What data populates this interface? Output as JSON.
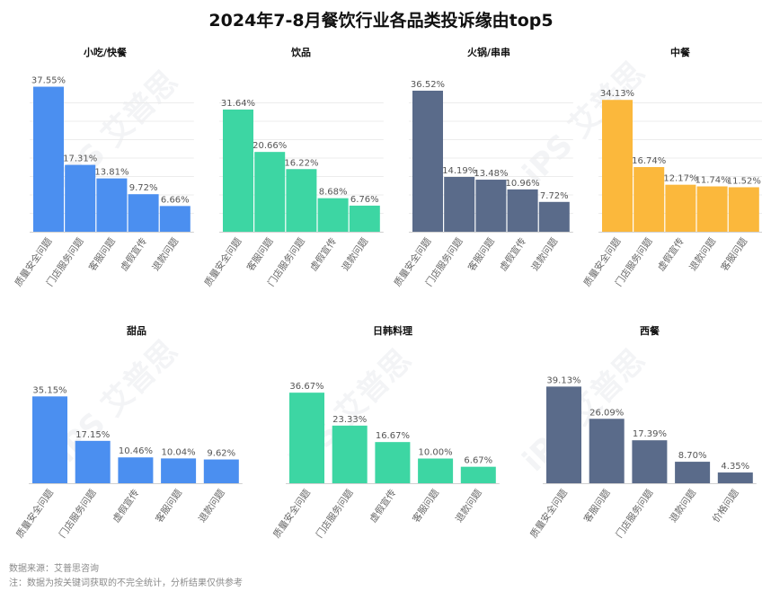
{
  "title": "2024年7-8月餐饮行业各品类投诉缘由top5",
  "footer": {
    "source": "数据来源：艾普思咨询",
    "note": "注：数据为按关键词获取的不完全统计，分析结果仅供参考"
  },
  "watermark": "iPS 艾普思",
  "colors": {
    "blue": "#4b8ff0",
    "green": "#3dd6a3",
    "slate": "#5a6b8a",
    "orange": "#fbb83c"
  },
  "chart_data": [
    {
      "type": "bar",
      "title": "小吃/快餐",
      "color": "blue",
      "categories": [
        "质量安全问题",
        "门店服务问题",
        "客服问题",
        "虚假宣传",
        "退款问题"
      ],
      "values": [
        37.55,
        17.31,
        13.81,
        9.72,
        6.66
      ],
      "labels": [
        "37.55%",
        "17.31%",
        "13.81%",
        "9.72%",
        "6.66%"
      ]
    },
    {
      "type": "bar",
      "title": "饮品",
      "color": "green",
      "categories": [
        "质量安全问题",
        "客服问题",
        "门店服务问题",
        "虚假宣传",
        "退款问题"
      ],
      "values": [
        31.64,
        20.66,
        16.22,
        8.68,
        6.76
      ],
      "labels": [
        "31.64%",
        "20.66%",
        "16.22%",
        "8.68%",
        "6.76%"
      ]
    },
    {
      "type": "bar",
      "title": "火锅/串串",
      "color": "slate",
      "categories": [
        "质量安全问题",
        "门店服务问题",
        "客服问题",
        "虚假宣传",
        "退款问题"
      ],
      "values": [
        36.52,
        14.19,
        13.48,
        10.96,
        7.72
      ],
      "labels": [
        "36.52%",
        "14.19%",
        "13.48%",
        "10.96%",
        "7.72%"
      ]
    },
    {
      "type": "bar",
      "title": "中餐",
      "color": "orange",
      "categories": [
        "质量安全问题",
        "门店服务问题",
        "虚假宣传",
        "退款问题",
        "客服问题"
      ],
      "values": [
        34.13,
        16.74,
        12.17,
        11.74,
        11.52
      ],
      "labels": [
        "34.13%",
        "16.74%",
        "12.17%",
        "11.74%",
        "11.52%"
      ]
    },
    {
      "type": "bar",
      "title": "甜品",
      "color": "blue",
      "categories": [
        "质量安全问题",
        "门店服务问题",
        "虚假宣传",
        "客服问题",
        "退款问题"
      ],
      "values": [
        35.15,
        17.15,
        10.46,
        10.04,
        9.62
      ],
      "labels": [
        "35.15%",
        "17.15%",
        "10.46%",
        "10.04%",
        "9.62%"
      ]
    },
    {
      "type": "bar",
      "title": "日韩料理",
      "color": "green",
      "categories": [
        "质量安全问题",
        "门店服务问题",
        "虚假宣传",
        "客服问题",
        "退款问题"
      ],
      "values": [
        36.67,
        23.33,
        16.67,
        10.0,
        6.67
      ],
      "labels": [
        "36.67%",
        "23.33%",
        "16.67%",
        "10.00%",
        "6.67%"
      ]
    },
    {
      "type": "bar",
      "title": "西餐",
      "color": "slate",
      "categories": [
        "质量安全问题",
        "客服问题",
        "门店服务问题",
        "退款问题",
        "价格问题"
      ],
      "values": [
        39.13,
        26.09,
        17.39,
        8.7,
        4.35
      ],
      "labels": [
        "39.13%",
        "26.09%",
        "17.39%",
        "8.70%",
        "4.35%"
      ]
    }
  ]
}
